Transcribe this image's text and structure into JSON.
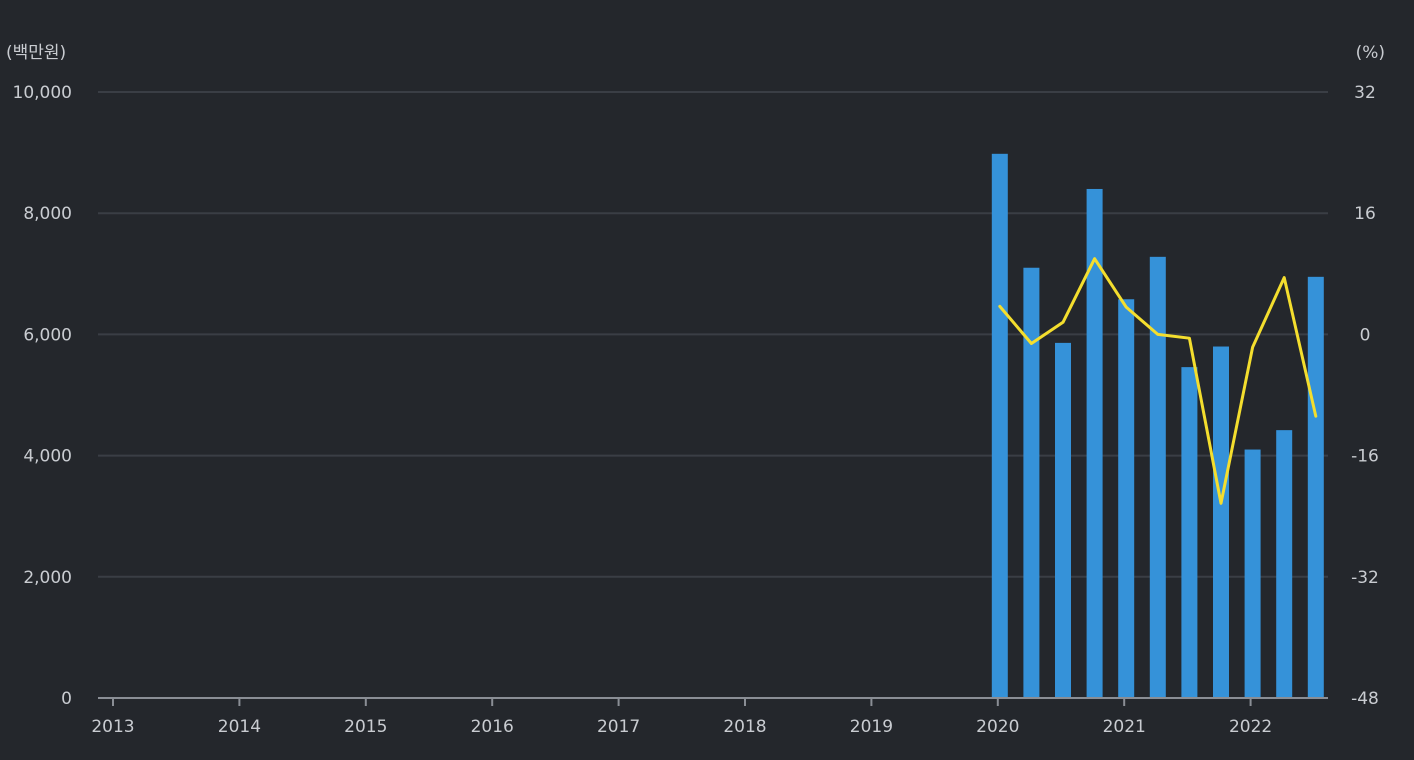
{
  "chart_data": {
    "type": "bar+line",
    "left_unit": "(백만원)",
    "right_unit": "(%)",
    "x_ticks": [
      "2013",
      "2014",
      "2015",
      "2016",
      "2017",
      "2018",
      "2019",
      "2020",
      "2021",
      "2022"
    ],
    "y_left": {
      "min": 0,
      "max": 10000,
      "ticks": [
        "0",
        "2,000",
        "4,000",
        "6,000",
        "8,000",
        "10,000"
      ],
      "tick_values": [
        0,
        2000,
        4000,
        6000,
        8000,
        10000
      ]
    },
    "y_right": {
      "min": -48,
      "max": 32,
      "ticks": [
        "-48",
        "-32",
        "-16",
        "0",
        "16",
        "32"
      ],
      "tick_values": [
        -48,
        -32,
        -16,
        0,
        16,
        32
      ]
    },
    "grid": true,
    "x_start": 2013,
    "x_end": 2022.75,
    "bar_series": {
      "x": [
        2020.0,
        2020.25,
        2020.5,
        2020.75,
        2021.0,
        2021.25,
        2021.5,
        2021.75,
        2022.0,
        2022.25,
        2022.5
      ],
      "values": [
        8980,
        7100,
        5860,
        8400,
        6580,
        7280,
        5460,
        5800,
        4100,
        4420,
        6950
      ]
    },
    "line_series": {
      "x": [
        2020.0,
        2020.25,
        2020.5,
        2020.75,
        2021.0,
        2021.25,
        2021.5,
        2021.75,
        2022.0,
        2022.25,
        2022.5
      ],
      "values": [
        3.7,
        -1.2,
        1.6,
        10.0,
        3.6,
        0.0,
        -0.5,
        -22.3,
        -1.7,
        7.5,
        -10.8
      ]
    },
    "colors": {
      "bars": "#3592d9",
      "line": "#f4de2e",
      "grid": "#3a3e45",
      "axis": "#8a8e95",
      "text": "#c9ccd1",
      "background": "#24272c"
    }
  }
}
